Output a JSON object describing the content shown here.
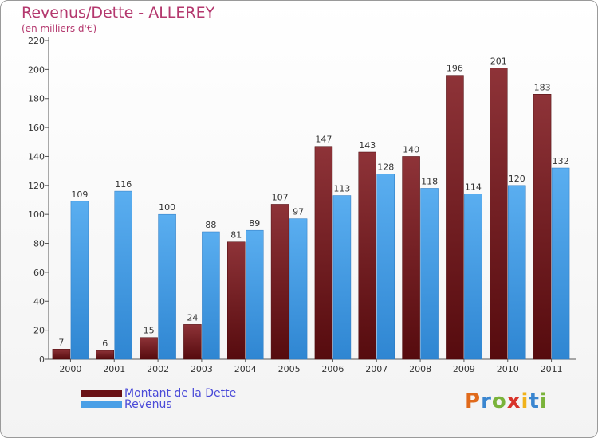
{
  "header": {
    "title": "Revenus/Dette - ALLEREY",
    "subtitle": "(en milliers d'€)"
  },
  "chart_data": {
    "type": "bar",
    "title": "Revenus/Dette - ALLEREY",
    "subtitle": "(en milliers d'€)",
    "xlabel": "",
    "ylabel": "",
    "ylim": [
      0,
      220
    ],
    "yticks": [
      0,
      20,
      40,
      60,
      80,
      100,
      120,
      140,
      160,
      180,
      200,
      220
    ],
    "grid": false,
    "legend_position": "bottom-left",
    "categories": [
      "2000",
      "2001",
      "2002",
      "2003",
      "2004",
      "2005",
      "2006",
      "2007",
      "2008",
      "2009",
      "2010",
      "2011"
    ],
    "series": [
      {
        "name": "Montant de la Dette",
        "color": "#7a1e22",
        "values": [
          7,
          6,
          15,
          24,
          81,
          107,
          147,
          143,
          140,
          196,
          201,
          183
        ]
      },
      {
        "name": "Revenus",
        "color": "#4a9fe6",
        "values": [
          109,
          116,
          100,
          88,
          89,
          97,
          113,
          128,
          118,
          114,
          120,
          132
        ]
      }
    ]
  },
  "legend": {
    "items": [
      {
        "label": "Montant de la Dette",
        "color": "#6a1115"
      },
      {
        "label": "Revenus",
        "color": "#4a9fe6"
      }
    ]
  },
  "logo": {
    "letters": [
      "P",
      "r",
      "o",
      "x",
      "i",
      "t",
      "i"
    ],
    "colors": [
      "#e06a1b",
      "#3a86d0",
      "#7ab33a",
      "#d8332a",
      "#f0b21a",
      "#3a86d0",
      "#7ab33a"
    ]
  }
}
